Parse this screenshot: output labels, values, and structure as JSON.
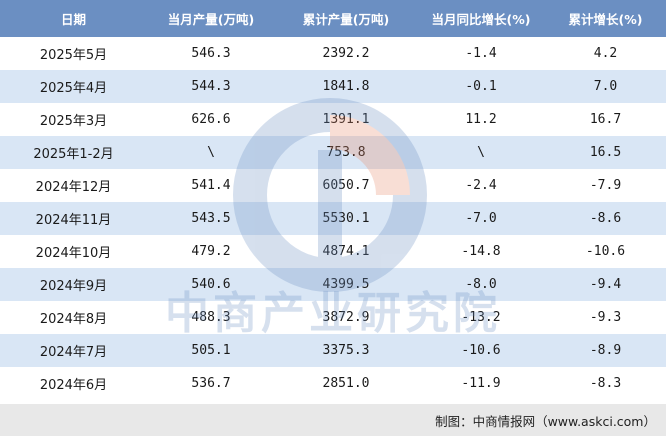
{
  "table": {
    "headers": [
      "日期",
      "当月产量(万吨)",
      "累计产量(万吨)",
      "当月同比增长(%)",
      "累计增长(%)"
    ],
    "rows": [
      [
        "2025年5月",
        "546.3",
        "2392.2",
        "-1.4",
        "4.2"
      ],
      [
        "2025年4月",
        "544.3",
        "1841.8",
        "-0.1",
        "7.0"
      ],
      [
        "2025年3月",
        "626.6",
        "1391.1",
        "11.2",
        "16.7"
      ],
      [
        "2025年1-2月",
        "\\",
        "753.8",
        "\\",
        "16.5"
      ],
      [
        "2024年12月",
        "541.4",
        "6050.7",
        "-2.4",
        "-7.9"
      ],
      [
        "2024年11月",
        "543.5",
        "5530.1",
        "-7.0",
        "-8.6"
      ],
      [
        "2024年10月",
        "479.2",
        "4874.1",
        "-14.8",
        "-10.6"
      ],
      [
        "2024年9月",
        "540.6",
        "4399.5",
        "-8.0",
        "-9.4"
      ],
      [
        "2024年8月",
        "488.3",
        "3872.9",
        "-13.2",
        "-9.3"
      ],
      [
        "2024年7月",
        "505.1",
        "3375.3",
        "-10.6",
        "-8.9"
      ],
      [
        "2024年6月",
        "536.7",
        "2851.0",
        "-11.9",
        "-8.3"
      ]
    ]
  },
  "watermark": {
    "text": "中商产业研究院"
  },
  "footer": {
    "credit": "制图：中商情报网（www.askci.com）"
  },
  "colors": {
    "header_bg": "#6b8fc2",
    "row_alt": "#d9e6f5",
    "footer_bg": "#e8e8e8"
  }
}
